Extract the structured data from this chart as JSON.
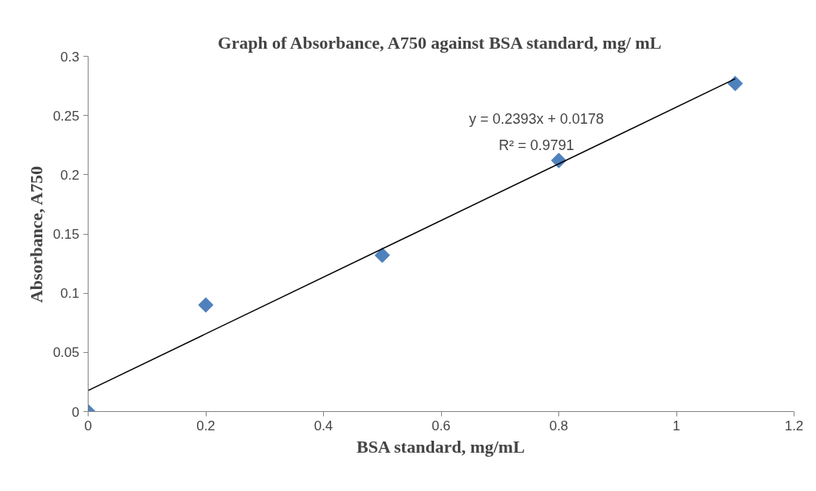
{
  "chart_data": {
    "type": "scatter",
    "title": "Graph of Absorbance, A750 against BSA standard, mg/ mL",
    "xlabel": "BSA standard, mg/mL",
    "ylabel": "Absorbance, A750",
    "x": [
      0,
      0.2,
      0.5,
      0.8,
      1.1
    ],
    "series": [
      {
        "color": "#4f81bd",
        "marker": "diamond",
        "values": [
          0,
          0.09,
          0.132,
          0.212,
          0.277
        ]
      },
      {
        "type": "line",
        "color": "#000000",
        "x": [
          0,
          1.1
        ],
        "values": [
          0.0178,
          0.281
        ],
        "line_style": "solid",
        "marker": "none"
      }
    ],
    "annotations": [
      "y = 0.2393x + 0.0178",
      "R² = 0.9791"
    ],
    "xlim": [
      0,
      1.2
    ],
    "ylim": [
      0,
      0.3
    ],
    "xticks": [
      0,
      0.2,
      0.4,
      0.6,
      0.8,
      1,
      1.2
    ],
    "yticks": [
      0,
      0.05,
      0.1,
      0.15,
      0.2,
      0.25,
      0.3
    ],
    "grid": false
  }
}
